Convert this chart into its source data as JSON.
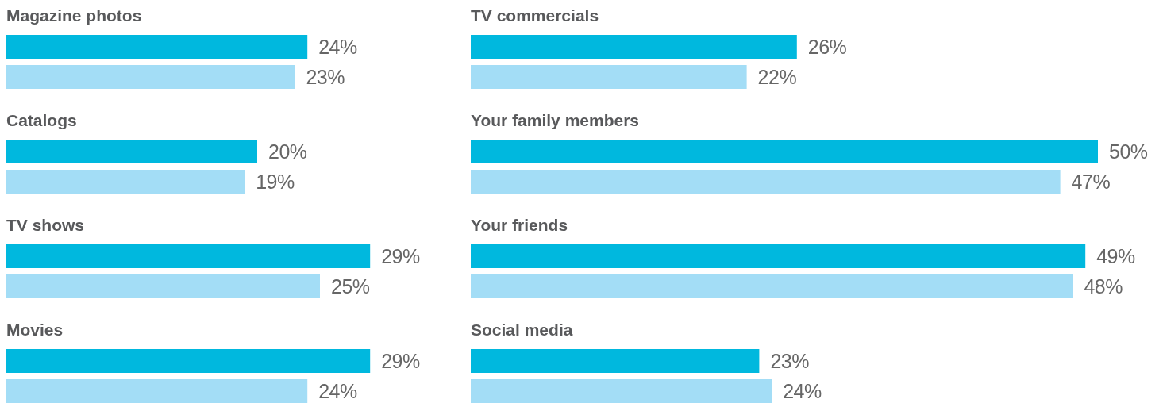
{
  "chart_data": [
    {
      "type": "bar",
      "orientation": "horizontal",
      "categories": [
        "Magazine photos",
        "Catalogs",
        "TV shows",
        "Movies"
      ],
      "series": [
        {
          "color": "#00b8de",
          "values": [
            24,
            20,
            29,
            29
          ],
          "value_labels": [
            "24%",
            "20%",
            "29%",
            "29%"
          ]
        },
        {
          "color": "#a3ddf6",
          "values": [
            23,
            19,
            25,
            24
          ],
          "value_labels": [
            "23%",
            "19%",
            "25%",
            "24%"
          ]
        }
      ]
    },
    {
      "type": "bar",
      "orientation": "horizontal",
      "categories": [
        "TV commercials",
        "Your family members",
        "Your friends",
        "Social media"
      ],
      "series": [
        {
          "color": "#00b8de",
          "values": [
            26,
            50,
            49,
            23
          ],
          "value_labels": [
            "26%",
            "50%",
            "49%",
            "23%"
          ]
        },
        {
          "color": "#a3ddf6",
          "values": [
            22,
            47,
            48,
            24
          ],
          "value_labels": [
            "22%",
            "47%",
            "48%",
            "24%"
          ]
        }
      ]
    }
  ]
}
